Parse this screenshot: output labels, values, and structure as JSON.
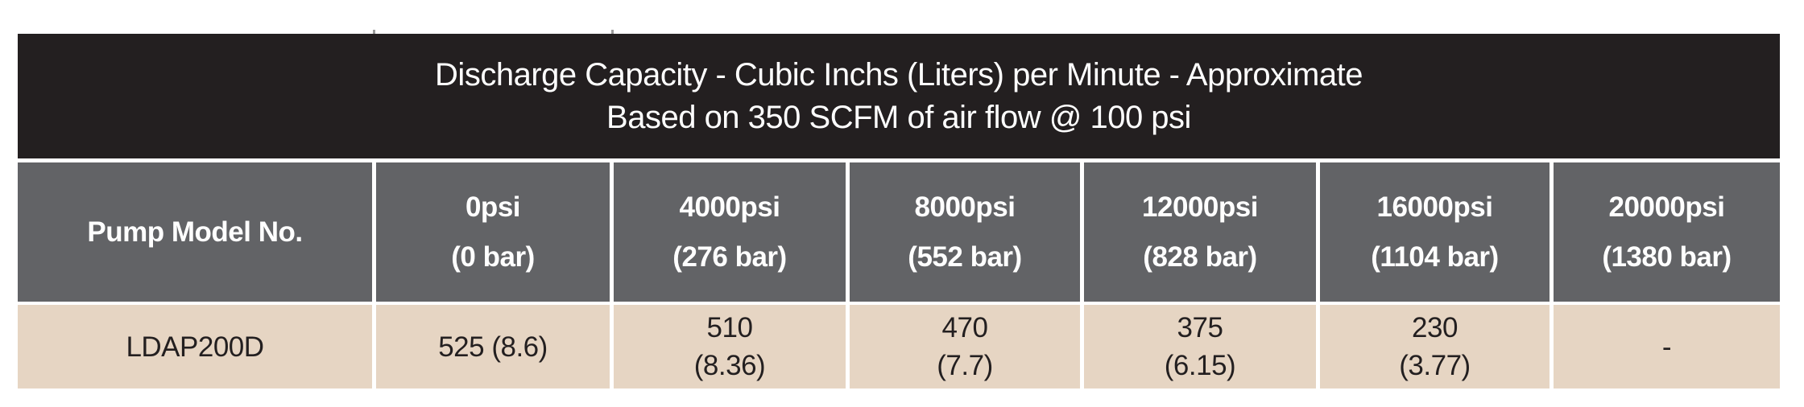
{
  "title": {
    "line1": "Discharge Capacity - Cubic Inchs (Liters) per Minute - Approximate",
    "line2": "Based on 350 SCFM of air flow @ 100 psi"
  },
  "header": {
    "cells": [
      {
        "line1": "Pump Model No.",
        "line2": ""
      },
      {
        "line1": "0psi",
        "line2": "(0 bar)"
      },
      {
        "line1": "4000psi",
        "line2": "(276 bar)"
      },
      {
        "line1": "8000psi",
        "line2": "(552 bar)"
      },
      {
        "line1": "12000psi",
        "line2": "(828 bar)"
      },
      {
        "line1": "16000psi",
        "line2": "(1104 bar)"
      },
      {
        "line1": "20000psi",
        "line2": "(1380 bar)"
      }
    ]
  },
  "row": {
    "cells": [
      {
        "line1": "LDAP200D",
        "line2": ""
      },
      {
        "line1": "525 (8.6)",
        "line2": ""
      },
      {
        "line1": "510",
        "line2": "(8.36)"
      },
      {
        "line1": "470",
        "line2": "(7.7)"
      },
      {
        "line1": "375",
        "line2": "(6.15)"
      },
      {
        "line1": "230",
        "line2": "(3.77)"
      },
      {
        "line1": "-",
        "line2": ""
      }
    ]
  },
  "colors": {
    "page_bg": "#ffffff",
    "header_band": "#231f20",
    "header_row": "#626366",
    "data_row": "#e6d5c3",
    "text_light": "#ffffff",
    "text_dark": "#231f20"
  },
  "chart_data": {
    "type": "table",
    "title": "Discharge Capacity - Cubic Inchs (Liters) per Minute - Approximate",
    "subtitle": "Based on 350 SCFM of air flow @ 100 psi",
    "columns": [
      "Pump Model No.",
      "0psi (0 bar)",
      "4000psi (276 bar)",
      "8000psi (552 bar)",
      "12000psi (828 bar)",
      "16000psi (1104 bar)",
      "20000psi (1380 bar)"
    ],
    "rows": [
      [
        "LDAP200D",
        "525 (8.6)",
        "510 (8.36)",
        "470 (7.7)",
        "375 (6.15)",
        "230 (3.77)",
        "-"
      ]
    ]
  }
}
